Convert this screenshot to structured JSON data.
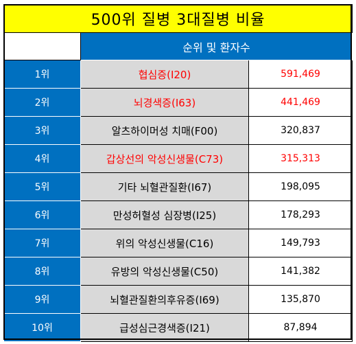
{
  "title": "500위 질병 3대질병 비율",
  "header": {
    "label": "순위 및 환자수"
  },
  "colors": {
    "title_bg": "#ffff00",
    "header_bg": "#0070c0",
    "name_bg": "#d9d9d9",
    "highlight_text": "#ff0000"
  },
  "rows": [
    {
      "rank": "1위",
      "disease": "협심증(I20)",
      "patients": "591,469",
      "highlight": true
    },
    {
      "rank": "2위",
      "disease": "뇌경색증(I63)",
      "patients": "441,469",
      "highlight": true
    },
    {
      "rank": "3위",
      "disease": "알츠하이머성 치매(F00)",
      "patients": "320,837",
      "highlight": false
    },
    {
      "rank": "4위",
      "disease": "갑상선의 악성신생물(C73)",
      "patients": "315,313",
      "highlight": true
    },
    {
      "rank": "5위",
      "disease": "기타 뇌혈관질환(I67)",
      "patients": "198,095",
      "highlight": false
    },
    {
      "rank": "6위",
      "disease": "만성허혈성 심장병(I25)",
      "patients": "178,293",
      "highlight": false
    },
    {
      "rank": "7위",
      "disease": "위의 악성신생물(C16)",
      "patients": "149,793",
      "highlight": false
    },
    {
      "rank": "8위",
      "disease": "유방의 악성신생물(C50)",
      "patients": "141,382",
      "highlight": false
    },
    {
      "rank": "9위",
      "disease": "뇌혈관질환의후유증(I69)",
      "patients": "135,870",
      "highlight": false
    },
    {
      "rank": "10위",
      "disease": "급성심근경색증(I21)",
      "patients": "87,894",
      "highlight": false
    }
  ]
}
